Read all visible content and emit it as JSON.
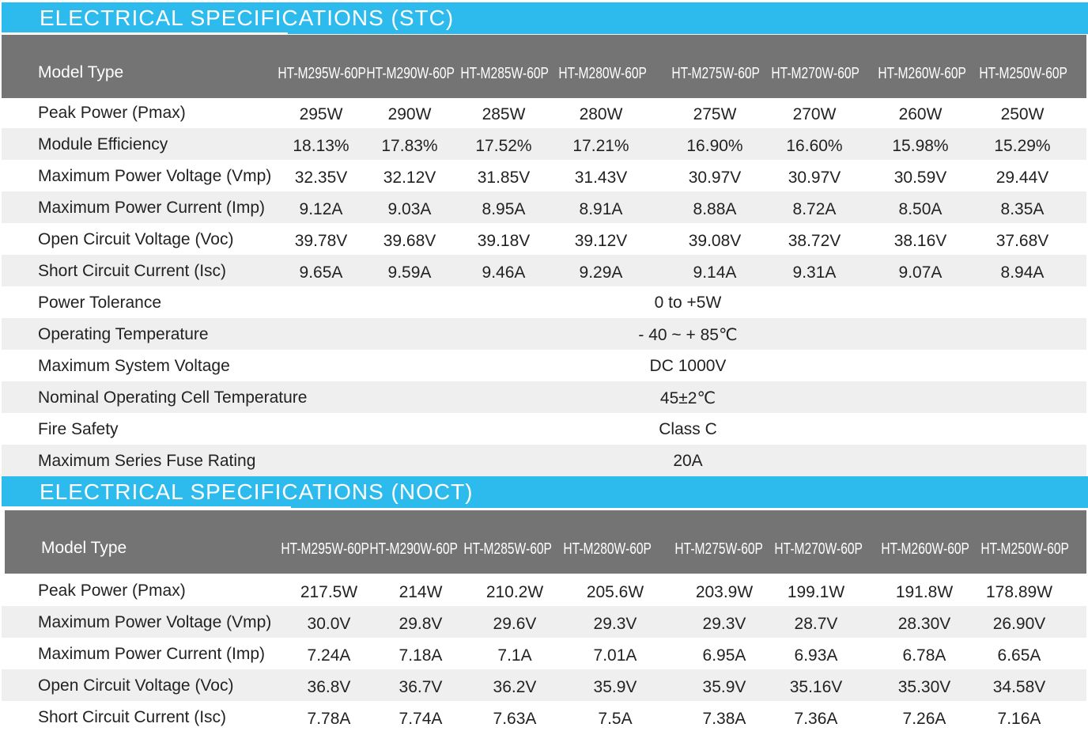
{
  "stc": {
    "title": "ELECTRICAL SPECIFICATIONS (STC)",
    "model_label": "Model Type",
    "models": [
      "HT-M295W-60P",
      "HT-M290W-60P",
      "HT-M285W-60P",
      "HT-M280W-60P",
      "HT-M275W-60P",
      "HT-M270W-60P",
      "HT-M260W-60P",
      "HT-M250W-60P"
    ],
    "rows": [
      {
        "label": "Peak Power (Pmax)",
        "values": [
          "295W",
          "290W",
          "285W",
          "280W",
          "275W",
          "270W",
          "260W",
          "250W"
        ]
      },
      {
        "label": "Module Efficiency",
        "values": [
          "18.13%",
          "17.83%",
          "17.52%",
          "17.21%",
          "16.90%",
          "16.60%",
          "15.98%",
          "15.29%"
        ]
      },
      {
        "label": "Maximum Power Voltage (Vmp)",
        "values": [
          "32.35V",
          "32.12V",
          "31.85V",
          "31.43V",
          "30.97V",
          "30.97V",
          "30.59V",
          "29.44V"
        ]
      },
      {
        "label": "Maximum Power Current (Imp)",
        "values": [
          "9.12A",
          "9.03A",
          "8.95A",
          "8.91A",
          "8.88A",
          "8.72A",
          "8.50A",
          "8.35A"
        ]
      },
      {
        "label": "Open Circuit Voltage (Voc)",
        "values": [
          "39.78V",
          "39.68V",
          "39.18V",
          "39.12V",
          "39.08V",
          "38.72V",
          "38.16V",
          "37.68V"
        ]
      },
      {
        "label": "Short Circuit Current (Isc)",
        "values": [
          "9.65A",
          "9.59A",
          "9.46A",
          "9.29A",
          "9.14A",
          "9.31A",
          "9.07A",
          "8.94A"
        ]
      }
    ],
    "common_rows": [
      {
        "label": "Power Tolerance",
        "value": "0 to +5W"
      },
      {
        "label": "Operating Temperature",
        "value": "- 40 ~ + 85℃"
      },
      {
        "label": "Maximum System Voltage",
        "value": "DC 1000V"
      },
      {
        "label": "Nominal Operating Cell Temperature",
        "value": "45±2℃"
      },
      {
        "label": "Fire Safety",
        "value": "Class C"
      },
      {
        "label": "Maximum Series Fuse Rating",
        "value": "20A"
      }
    ]
  },
  "noct": {
    "title": "ELECTRICAL SPECIFICATIONS (NOCT)",
    "model_label": "Model Type",
    "models": [
      "HT-M295W-60P",
      "HT-M290W-60P",
      "HT-M285W-60P",
      "HT-M280W-60P",
      "HT-M275W-60P",
      "HT-M270W-60P",
      "HT-M260W-60P",
      "HT-M250W-60P"
    ],
    "rows": [
      {
        "label": "Peak Power (Pmax)",
        "values": [
          "217.5W",
          "214W",
          "210.2W",
          "205.6W",
          "203.9W",
          "199.1W",
          "191.8W",
          "178.89W"
        ]
      },
      {
        "label": "Maximum Power Voltage (Vmp)",
        "values": [
          "30.0V",
          "29.8V",
          "29.6V",
          "29.3V",
          "29.3V",
          "28.7V",
          "28.30V",
          "26.90V"
        ]
      },
      {
        "label": "Maximum Power Current (Imp)",
        "values": [
          "7.24A",
          "7.18A",
          "7.1A",
          "7.01A",
          "6.95A",
          "6.93A",
          "6.78A",
          "6.65A"
        ]
      },
      {
        "label": "Open Circuit Voltage (Voc)",
        "values": [
          "36.8V",
          "36.7V",
          "36.2V",
          "35.9V",
          "35.9V",
          "35.16V",
          "35.30V",
          "34.58V"
        ]
      },
      {
        "label": "Short Circuit Current (Isc)",
        "values": [
          "7.78A",
          "7.74A",
          "7.63A",
          "7.5A",
          "7.38A",
          "7.36A",
          "7.26A",
          "7.16A"
        ]
      }
    ]
  },
  "colors": {
    "title_bar": "#2dbbee",
    "header_bar": "#747474",
    "row_shade": "#efefef"
  }
}
